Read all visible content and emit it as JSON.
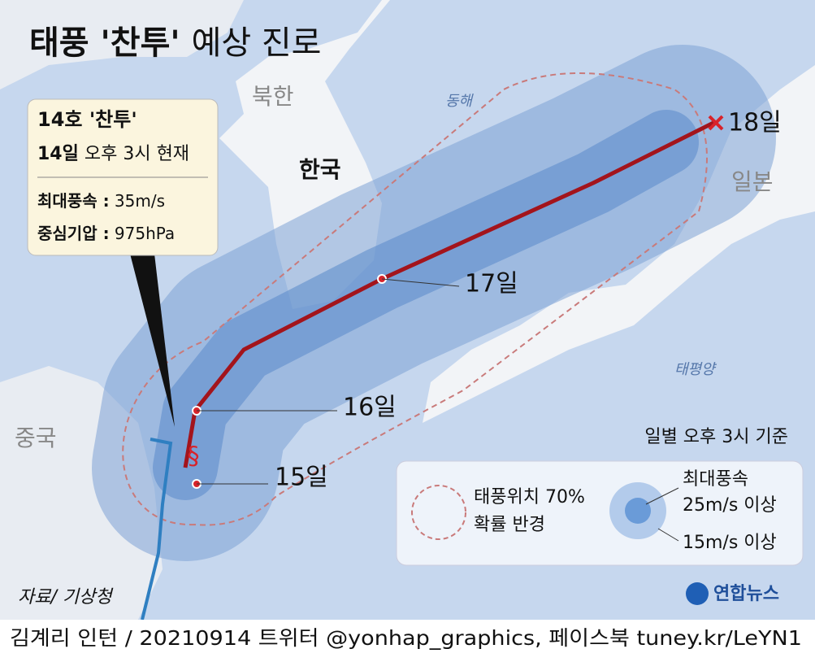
{
  "title_main": "태풍 '찬투'",
  "title_sub": "예상 진로",
  "info_box": {
    "name": "14호 '찬투'",
    "time_day": "14일",
    "time_rest": "오후 3시 현재",
    "max_wind_label": "최대풍속 :",
    "max_wind": "35m/s",
    "pressure_label": "중심기압 :",
    "pressure": "975hPa"
  },
  "regions": [
    "북한",
    "한국",
    "동해",
    "일본",
    "중국",
    "태평양"
  ],
  "track_days": [
    "15일",
    "16일",
    "17일",
    "18일"
  ],
  "legend": {
    "note": "일별 오후 3시 기준",
    "radius_line1": "태풍위치 70%",
    "radius_line2": "확률 반경",
    "wind_title": "최대풍속",
    "wind_strong": "25m/s 이상",
    "wind_weak": "15m/s 이상"
  },
  "source": "자료/ 기상청",
  "logo": "연합뉴스",
  "footer": "김계리 인턴 / 20210914 트위터 @yonhap_graphics, 페이스북 tuney.kr/LeYN1"
}
